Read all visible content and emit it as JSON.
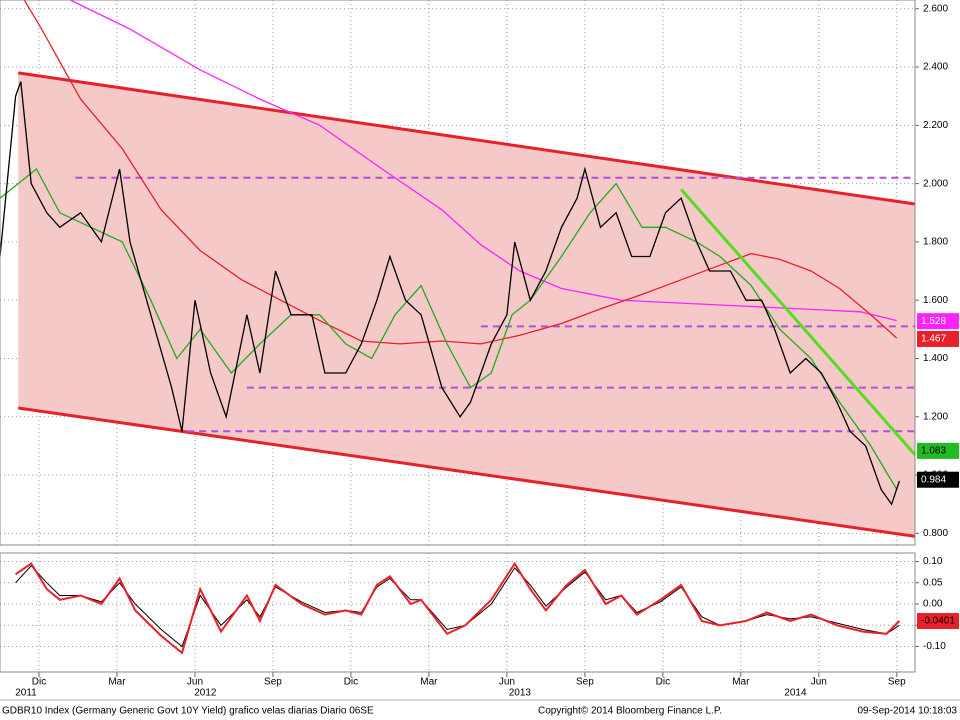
{
  "chart_data": [
    {
      "type": "line",
      "xlim": [
        -0.5,
        34.7
      ],
      "ylim": [
        0.76,
        2.63
      ],
      "xticks": [
        {
          "value": 1,
          "label": "Dic"
        },
        {
          "value": 4,
          "label": "Mar"
        },
        {
          "value": 7,
          "label": "Jun"
        },
        {
          "value": 10,
          "label": "Sep"
        },
        {
          "value": 13,
          "label": "Dic"
        },
        {
          "value": 16,
          "label": "Mar"
        },
        {
          "value": 19,
          "label": "Jun"
        },
        {
          "value": 22,
          "label": "Sep"
        },
        {
          "value": 25,
          "label": "Dic"
        },
        {
          "value": 28,
          "label": "Mar"
        },
        {
          "value": 31,
          "label": "Jun"
        },
        {
          "value": 34,
          "label": "Sep"
        }
      ],
      "year_ticks": [
        {
          "value": 0.5,
          "label": "2011"
        },
        {
          "value": 7.4,
          "label": "2012"
        },
        {
          "value": 19.5,
          "label": "2013"
        },
        {
          "value": 30.1,
          "label": "2014"
        }
      ],
      "yticks": [
        {
          "value": 2.6,
          "label": "2.600"
        },
        {
          "value": 2.4,
          "label": "2.400"
        },
        {
          "value": 2.2,
          "label": "2.200"
        },
        {
          "value": 2,
          "label": "2.000"
        },
        {
          "value": 1.8,
          "label": "1.800"
        },
        {
          "value": 1.6,
          "label": "1.600"
        },
        {
          "value": 1.4,
          "label": "1.400"
        },
        {
          "value": 1.2,
          "label": "1.200"
        },
        {
          "value": 1,
          "label": "1.000"
        },
        {
          "value": 0.8,
          "label": "0.800"
        }
      ],
      "grid": true,
      "series": [
        {
          "kind": "channel",
          "color": "#e8202a",
          "fill": "#f6c9c9",
          "x": [
            0.2,
            34.7
          ],
          "upper": [
            2.38,
            1.93
          ],
          "lower": [
            1.23,
            0.79
          ]
        },
        {
          "kind": "dashed",
          "color": "#b04fd8",
          "x": [
            2.4,
            34.7
          ],
          "values": [
            2.02,
            2.02
          ]
        },
        {
          "kind": "dashed",
          "color": "#b04fd8",
          "x": [
            18.0,
            34.7
          ],
          "values": [
            1.51,
            1.51
          ]
        },
        {
          "kind": "dashed",
          "color": "#b04fd8",
          "x": [
            9.0,
            34.7
          ],
          "values": [
            1.3,
            1.3
          ]
        },
        {
          "kind": "dashed",
          "color": "#b04fd8",
          "x": [
            6.7,
            34.7
          ],
          "values": [
            1.15,
            1.15
          ]
        },
        {
          "kind": "line",
          "color": "#ff22ff",
          "x": [
            2.2,
            4.5,
            7.2,
            9.5,
            11.8,
            14.2,
            16.5,
            18.0,
            19.5,
            21.1,
            23.4,
            25.7,
            28.0,
            30.3,
            32.6,
            34.0
          ],
          "values": [
            2.63,
            2.53,
            2.39,
            2.29,
            2.2,
            2.05,
            1.91,
            1.79,
            1.7,
            1.64,
            1.6,
            1.59,
            1.58,
            1.57,
            1.56,
            1.53
          ]
        },
        {
          "kind": "line",
          "color": "#e8202a",
          "x": [
            0.3,
            1.1,
            2.6,
            4.2,
            5.7,
            7.2,
            8.8,
            10.3,
            11.8,
            13.4,
            14.9,
            16.5,
            18.0,
            19.5,
            21.1,
            22.6,
            24.2,
            25.7,
            27.2,
            28.4,
            29.5,
            30.7,
            31.8,
            33.0,
            34.0
          ],
          "values": [
            2.65,
            2.53,
            2.29,
            2.12,
            1.91,
            1.77,
            1.67,
            1.6,
            1.53,
            1.46,
            1.45,
            1.46,
            1.45,
            1.48,
            1.52,
            1.57,
            1.62,
            1.67,
            1.72,
            1.76,
            1.74,
            1.7,
            1.64,
            1.55,
            1.47
          ]
        },
        {
          "kind": "line",
          "color": "#22aa22",
          "x": [
            -0.5,
            0.9,
            1.8,
            3.0,
            4.2,
            5.3,
            6.3,
            7.2,
            8.4,
            9.5,
            10.7,
            11.8,
            12.8,
            13.8,
            14.7,
            15.7,
            16.7,
            17.6,
            18.4,
            19.2,
            19.9,
            21.1,
            22.2,
            23.2,
            24.2,
            25.1,
            26.3,
            27.2,
            28.4,
            29.5,
            30.7,
            31.8,
            33.0,
            34.0
          ],
          "values": [
            1.95,
            2.05,
            1.9,
            1.85,
            1.8,
            1.6,
            1.4,
            1.5,
            1.35,
            1.45,
            1.55,
            1.55,
            1.45,
            1.4,
            1.55,
            1.65,
            1.45,
            1.3,
            1.35,
            1.55,
            1.6,
            1.75,
            1.9,
            2.0,
            1.85,
            1.85,
            1.8,
            1.75,
            1.65,
            1.5,
            1.4,
            1.25,
            1.1,
            0.95
          ]
        },
        {
          "kind": "thick",
          "color": "#55dd22",
          "x": [
            25.7,
            34.7
          ],
          "values": [
            1.98,
            1.07
          ]
        },
        {
          "kind": "line",
          "color": "#000000",
          "x": [
            -0.5,
            0.1,
            0.3,
            0.7,
            1.3,
            1.8,
            2.6,
            3.4,
            4.1,
            4.5,
            5.3,
            6.1,
            6.5,
            7.0,
            7.6,
            8.2,
            9.0,
            9.5,
            10.1,
            10.7,
            11.5,
            12.0,
            12.8,
            13.4,
            14.0,
            14.5,
            15.1,
            15.7,
            16.5,
            17.2,
            17.6,
            18.4,
            19.0,
            19.3,
            19.9,
            20.5,
            21.1,
            21.7,
            22.0,
            22.6,
            23.2,
            23.8,
            24.5,
            25.1,
            25.7,
            26.3,
            26.8,
            27.6,
            28.2,
            28.8,
            29.3,
            29.9,
            30.5,
            31.1,
            31.7,
            32.2,
            32.8,
            33.4,
            33.8,
            34.1
          ],
          "values": [
            1.75,
            2.3,
            2.35,
            2.0,
            1.9,
            1.85,
            1.9,
            1.8,
            2.05,
            1.8,
            1.55,
            1.3,
            1.15,
            1.6,
            1.35,
            1.2,
            1.55,
            1.35,
            1.7,
            1.55,
            1.55,
            1.35,
            1.35,
            1.45,
            1.6,
            1.75,
            1.6,
            1.55,
            1.3,
            1.2,
            1.25,
            1.45,
            1.55,
            1.8,
            1.6,
            1.7,
            1.85,
            1.95,
            2.05,
            1.85,
            1.9,
            1.75,
            1.75,
            1.9,
            1.95,
            1.8,
            1.7,
            1.7,
            1.6,
            1.6,
            1.5,
            1.35,
            1.4,
            1.35,
            1.25,
            1.15,
            1.1,
            0.95,
            0.9,
            0.98
          ]
        }
      ],
      "last_labels": [
        {
          "value": 1.528,
          "color": "#ff22ff",
          "text_color": "#ffffff"
        },
        {
          "value": 1.467,
          "color": "#e8202a",
          "text_color": "#ffffff"
        },
        {
          "value": 1.083,
          "color": "#22bb22",
          "text_color": "#000000"
        },
        {
          "value": 0.984,
          "color": "#000000",
          "text_color": "#ffffff"
        }
      ]
    },
    {
      "type": "line",
      "ylim": [
        -0.16,
        0.12
      ],
      "yticks": [
        {
          "value": 0.1,
          "label": "0.10"
        },
        {
          "value": 0.05,
          "label": "0.05"
        },
        {
          "value": 0,
          "label": "0.00"
        },
        {
          "value": -0.05,
          "label": "-0.05"
        },
        {
          "value": -0.1,
          "label": "-0.10"
        }
      ],
      "grid": true,
      "x": [
        0.1,
        0.7,
        1.3,
        1.8,
        2.6,
        3.4,
        4.1,
        4.7,
        5.7,
        6.5,
        7.2,
        8.0,
        9.0,
        9.5,
        10.1,
        11.1,
        12.0,
        12.8,
        13.4,
        14.0,
        14.5,
        15.3,
        15.7,
        16.7,
        17.4,
        18.4,
        19.3,
        19.9,
        20.5,
        21.3,
        22.0,
        22.8,
        23.4,
        24.0,
        24.9,
        25.7,
        26.5,
        27.2,
        28.2,
        29.0,
        29.9,
        30.7,
        31.7,
        32.7,
        33.6,
        34.1
      ],
      "series": [
        {
          "color": "#000000",
          "values": [
            0.05,
            0.09,
            0.05,
            0.02,
            0.02,
            0.005,
            0.05,
            0.0,
            -0.06,
            -0.1,
            0.02,
            -0.05,
            0.01,
            -0.03,
            0.04,
            0.005,
            -0.02,
            -0.015,
            -0.02,
            0.04,
            0.06,
            0.01,
            0.01,
            -0.06,
            -0.05,
            0.0,
            0.085,
            0.045,
            -0.005,
            0.04,
            0.075,
            0.01,
            0.02,
            -0.02,
            0.005,
            0.04,
            -0.03,
            -0.05,
            -0.04,
            -0.025,
            -0.035,
            -0.03,
            -0.045,
            -0.06,
            -0.07,
            -0.05
          ]
        },
        {
          "color": "#e8202a",
          "values": [
            0.07,
            0.095,
            0.035,
            0.01,
            0.02,
            0.0,
            0.06,
            -0.015,
            -0.075,
            -0.115,
            0.035,
            -0.065,
            0.02,
            -0.04,
            0.045,
            0.0,
            -0.025,
            -0.015,
            -0.025,
            0.045,
            0.065,
            0.0,
            0.01,
            -0.07,
            -0.05,
            0.01,
            0.095,
            0.035,
            -0.015,
            0.045,
            0.08,
            0.0,
            0.02,
            -0.025,
            0.01,
            0.045,
            -0.04,
            -0.05,
            -0.04,
            -0.02,
            -0.04,
            -0.025,
            -0.05,
            -0.065,
            -0.07,
            -0.04
          ]
        }
      ],
      "last_labels": [
        {
          "value": -0.0401,
          "color": "#e8202a",
          "text_color": "#000000"
        }
      ]
    }
  ],
  "footer": {
    "left": "GDBR10 Index (Germany Generic Govt 10Y Yield) grafico velas diarias  Diario 06SE",
    "center": "Copyright© 2014 Bloomberg Finance L.P.",
    "right": "09-Sep-2014 10:18:03"
  }
}
